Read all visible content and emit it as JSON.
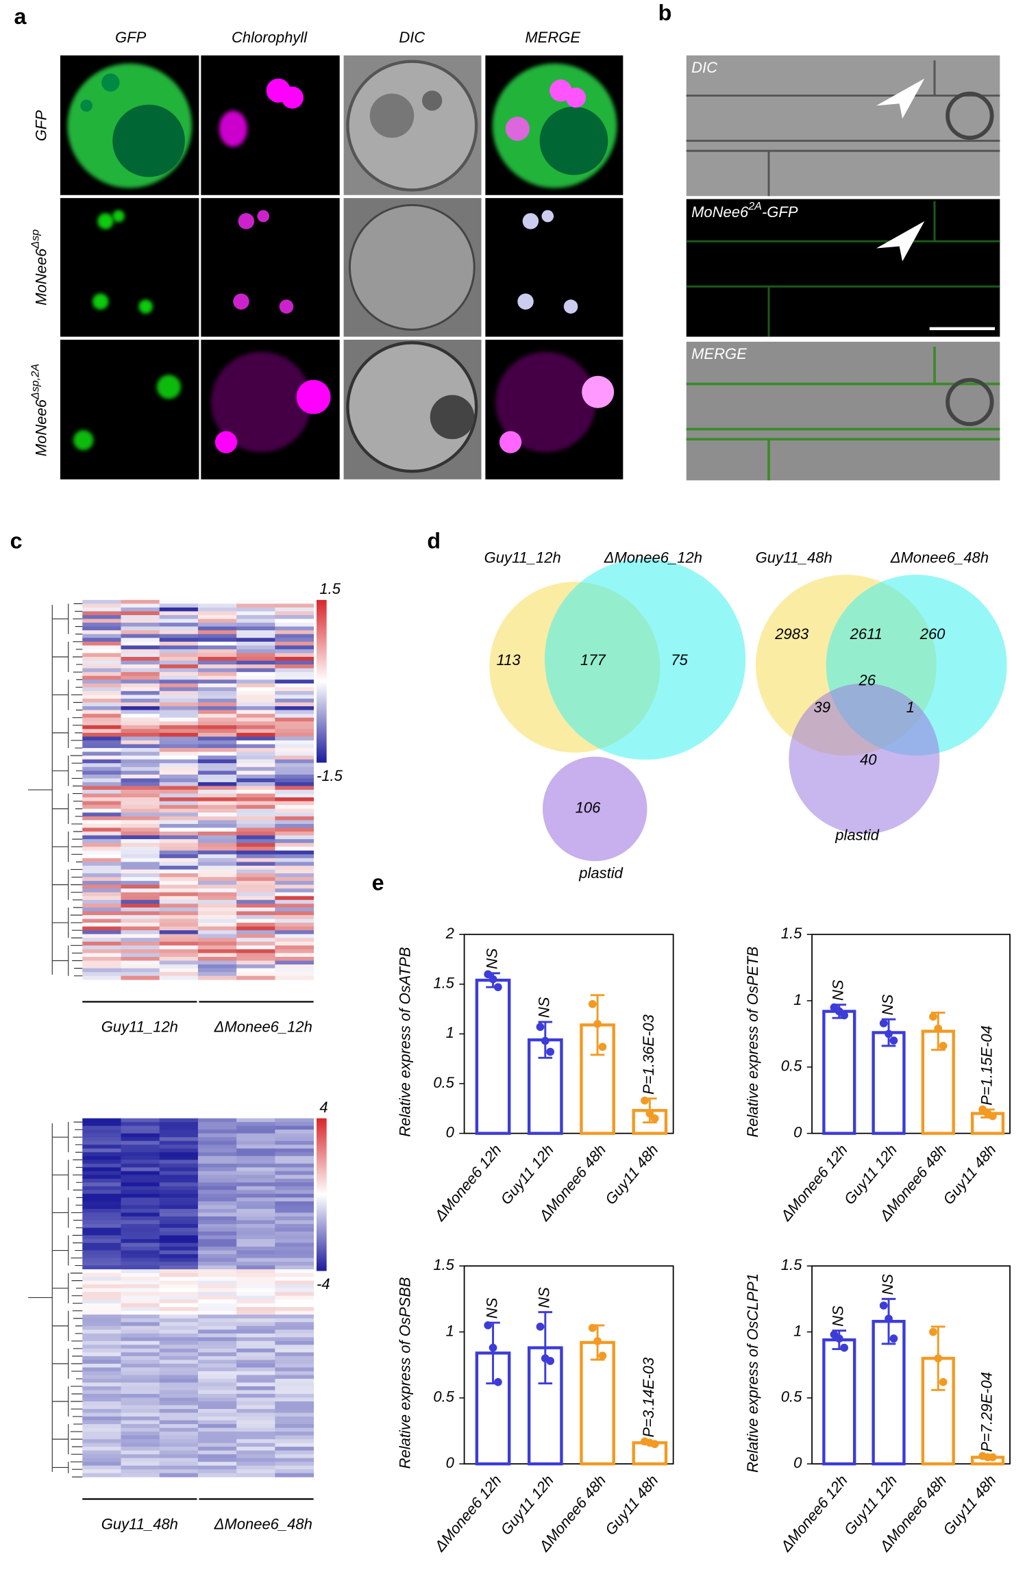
{
  "panel_a": {
    "label": "a",
    "columns": [
      "GFP",
      "Chlorophyll",
      "DIC",
      "MERGE"
    ],
    "rows": [
      {
        "base": "GFP",
        "sup": ""
      },
      {
        "base": "MoNee6",
        "sup": "Δsp"
      },
      {
        "base": "MoNee6",
        "sup": "Δsp,2A"
      }
    ]
  },
  "panel_b": {
    "label": "b",
    "images": [
      {
        "base": "DIC",
        "sup": "",
        "suffix": ""
      },
      {
        "base": "MoNee6",
        "sup": "2A",
        "suffix": "-GFP"
      },
      {
        "base": "MERGE",
        "sup": "",
        "suffix": ""
      }
    ]
  },
  "panel_c": {
    "label": "c",
    "heatmaps": [
      {
        "scale_max": 1.5,
        "scale_min": -1.5,
        "groups": [
          "Guy11_12h",
          "ΔMonee6_12h"
        ]
      },
      {
        "scale_max": 4,
        "scale_min": -4,
        "groups": [
          "Guy11_48h",
          "ΔMonee6_48h"
        ]
      }
    ]
  },
  "panel_d": {
    "label": "d",
    "venns": [
      {
        "sets": [
          "Guy11_12h",
          "ΔMonee6_12h",
          "plastid"
        ],
        "regions": [
          113,
          177,
          75,
          106
        ]
      },
      {
        "sets": [
          "Guy11_48h",
          "ΔMonee6_48h",
          "plastid"
        ],
        "regions": [
          2983,
          2611,
          260,
          26,
          39,
          1,
          40
        ]
      }
    ]
  },
  "panel_e": {
    "label": "e"
  },
  "chart_data": [
    {
      "type": "bar",
      "ylabel": "Relative express of OsATPB",
      "categories": [
        "ΔMonee6  12h",
        "Guy11 12h",
        "ΔMonee6  48h",
        "Guy11 48h"
      ],
      "colors": [
        "#3c3cd8",
        "#3c3cd8",
        "#f29a22",
        "#f29a22"
      ],
      "values": [
        1.54,
        0.94,
        1.09,
        0.23
      ],
      "errors": [
        0.07,
        0.18,
        0.3,
        0.12
      ],
      "points": [
        [
          1.6,
          1.55,
          1.47
        ],
        [
          1.07,
          0.93,
          0.82
        ],
        [
          1.3,
          1.1,
          0.87
        ],
        [
          0.33,
          0.2,
          0.15
        ]
      ],
      "annotations": [
        "NS",
        "NS",
        null,
        "P=1.36E-03"
      ],
      "ylim": [
        0,
        2
      ],
      "yticks": [
        0,
        0.5,
        1,
        1.5,
        2
      ]
    },
    {
      "type": "bar",
      "ylabel": "Relative express of OsPETB",
      "categories": [
        "ΔMonee6  12h",
        "Guy11 12h",
        "ΔMonee6  48h",
        "Guy11 48h"
      ],
      "colors": [
        "#3c3cd8",
        "#3c3cd8",
        "#f29a22",
        "#f29a22"
      ],
      "values": [
        0.92,
        0.76,
        0.77,
        0.15
      ],
      "errors": [
        0.05,
        0.1,
        0.14,
        0.03
      ],
      "points": [
        [
          0.95,
          0.92,
          0.89
        ],
        [
          0.83,
          0.75,
          0.7
        ],
        [
          0.88,
          0.79,
          0.66
        ],
        [
          0.18,
          0.15,
          0.13
        ]
      ],
      "annotations": [
        "NS",
        "NS",
        null,
        "P=1.15E-04"
      ],
      "ylim": [
        0,
        1.5
      ],
      "yticks": [
        0,
        0.5,
        1,
        1.5
      ]
    },
    {
      "type": "bar",
      "ylabel": "Relative express of OsPSBB",
      "categories": [
        "ΔMonee6  12h",
        "Guy11 12h",
        "ΔMonee6  48h",
        "Guy11 48h"
      ],
      "colors": [
        "#3c3cd8",
        "#3c3cd8",
        "#f29a22",
        "#f29a22"
      ],
      "values": [
        0.84,
        0.88,
        0.92,
        0.16
      ],
      "errors": [
        0.23,
        0.27,
        0.13,
        0.01
      ],
      "points": [
        [
          1.05,
          0.88,
          0.62
        ],
        [
          1.04,
          0.8,
          0.78
        ],
        [
          1.03,
          0.93,
          0.82
        ],
        [
          0.17,
          0.16,
          0.15
        ]
      ],
      "annotations": [
        "NS",
        "NS",
        null,
        "P=3.14E-03"
      ],
      "ylim": [
        0,
        1.5
      ],
      "yticks": [
        0,
        0.5,
        1,
        1.5
      ]
    },
    {
      "type": "bar",
      "ylabel": "Relative express of OsCLPP1",
      "categories": [
        "ΔMonee6  12h",
        "Guy11 12h",
        "ΔMonee6  48h",
        "Guy11 48h"
      ],
      "colors": [
        "#3c3cd8",
        "#3c3cd8",
        "#f29a22",
        "#f29a22"
      ],
      "values": [
        0.94,
        1.08,
        0.8,
        0.05
      ],
      "errors": [
        0.07,
        0.17,
        0.24,
        0.01
      ],
      "points": [
        [
          0.98,
          0.95,
          0.88
        ],
        [
          1.2,
          1.1,
          0.95
        ],
        [
          1.0,
          0.8,
          0.62
        ],
        [
          0.06,
          0.05,
          0.05
        ]
      ],
      "annotations": [
        "NS",
        "NS",
        null,
        "P=7.29E-04"
      ],
      "ylim": [
        0,
        1.5
      ],
      "yticks": [
        0,
        0.5,
        1,
        1.5
      ]
    }
  ]
}
